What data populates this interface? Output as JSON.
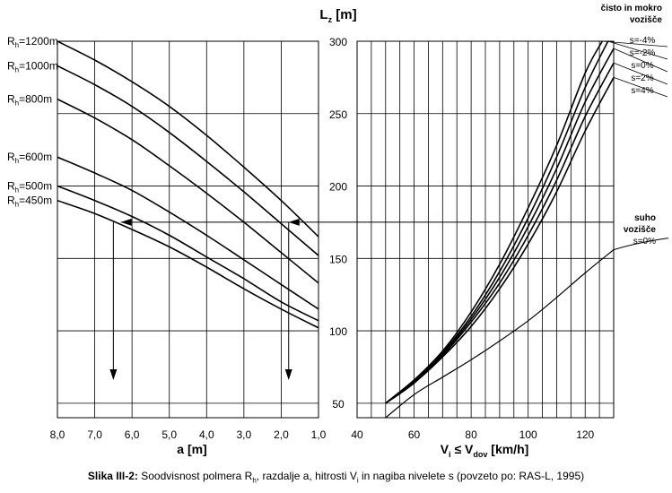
{
  "chart_data": [
    {
      "type": "line",
      "panel": "left",
      "xlabel": "a [m]",
      "xlim": [
        8.0,
        1.0
      ],
      "ylim": [
        40,
        300
      ],
      "x_ticks": [
        "8,0",
        "7,0",
        "6,0",
        "5,0",
        "4,0",
        "3,0",
        "2,0",
        "1,0"
      ],
      "x": [
        8.0,
        7.0,
        6.0,
        5.0,
        4.0,
        3.0,
        2.0,
        1.0
      ],
      "series": [
        {
          "name": "Rh=1200m",
          "sub": "h",
          "prefix": "R",
          "suffix": "=1200m",
          "values": [
            300,
            287,
            272,
            255,
            235,
            213,
            190,
            165
          ]
        },
        {
          "name": "Rh=1000m",
          "sub": "h",
          "prefix": "R",
          "suffix": "=1000m",
          "values": [
            283,
            270,
            255,
            237,
            217,
            196,
            174,
            152
          ]
        },
        {
          "name": "Rh=800m",
          "sub": "h",
          "prefix": "R",
          "suffix": "=800m",
          "values": [
            260,
            247,
            232,
            214,
            195,
            175,
            154,
            133
          ]
        },
        {
          "name": "Rh=600m",
          "sub": "h",
          "prefix": "R",
          "suffix": "=600m",
          "values": [
            220,
            209,
            197,
            182,
            166,
            149,
            132,
            115
          ]
        },
        {
          "name": "Rh=500m",
          "sub": "h",
          "prefix": "R",
          "suffix": "=500m",
          "values": [
            200,
            190,
            179,
            166,
            151,
            136,
            120,
            107
          ]
        },
        {
          "name": "Rh=450m",
          "sub": "h",
          "prefix": "R",
          "suffix": "=450m",
          "values": [
            190,
            181,
            170,
            158,
            144,
            129,
            115,
            102
          ]
        }
      ]
    },
    {
      "type": "line",
      "panel": "right",
      "ylabel": "Lz [m]",
      "ylabel_main": "L",
      "ylabel_sub": "z",
      "ylabel_tail": " [m]",
      "xlabel_parts": [
        "V",
        "i",
        " ≤ V",
        "dov",
        " [km/h]"
      ],
      "xlim": [
        40,
        130
      ],
      "ylim": [
        40,
        300
      ],
      "x_ticks": [
        40,
        60,
        80,
        100,
        120
      ],
      "y_ticks": [
        50,
        100,
        150,
        200,
        250,
        300
      ],
      "group_labels": [
        {
          "lines": [
            "čisto in mokro",
            "vozišče"
          ]
        },
        {
          "lines": [
            "suho",
            "vozišče",
            "s=0%"
          ]
        }
      ],
      "series": [
        {
          "name": "s=-4%",
          "group": "wet",
          "x": [
            50,
            60,
            70,
            80,
            90,
            100,
            110,
            120,
            126
          ],
          "values": [
            50,
            66,
            86,
            113,
            146,
            185,
            228,
            278,
            300
          ]
        },
        {
          "name": "s=-2%",
          "group": "wet",
          "x": [
            50,
            60,
            70,
            80,
            90,
            100,
            110,
            120,
            128
          ],
          "values": [
            50,
            66,
            85,
            110,
            141,
            178,
            220,
            268,
            300
          ]
        },
        {
          "name": "s=0%",
          "group": "wet",
          "x": [
            50,
            60,
            70,
            80,
            90,
            100,
            110,
            120,
            130
          ],
          "values": [
            50,
            65,
            84,
            108,
            137,
            172,
            212,
            258,
            295
          ]
        },
        {
          "name": "s=2%",
          "group": "wet",
          "x": [
            50,
            60,
            70,
            80,
            90,
            100,
            110,
            120,
            130
          ],
          "values": [
            50,
            64,
            83,
            106,
            133,
            166,
            204,
            248,
            285
          ]
        },
        {
          "name": "s=4%",
          "group": "wet",
          "x": [
            50,
            60,
            70,
            80,
            90,
            100,
            110,
            120,
            130
          ],
          "values": [
            50,
            64,
            82,
            103,
            129,
            160,
            196,
            238,
            275
          ]
        },
        {
          "name": "s=0%",
          "group": "dry",
          "x": [
            50,
            60,
            70,
            80,
            90,
            100,
            110,
            120,
            130
          ],
          "values": [
            40,
            56,
            68,
            80,
            93,
            107,
            123,
            140,
            156
          ]
        }
      ]
    }
  ],
  "caption": {
    "bold": "Slika III-2:",
    "t1": " Soodvisnost polmera R",
    "s1": "h",
    "t2": ", razdalje a, hitrosti V",
    "s2": "i",
    "t3": " in nagiba nivelete s (povzeto po: RAS-L, 1995)"
  }
}
